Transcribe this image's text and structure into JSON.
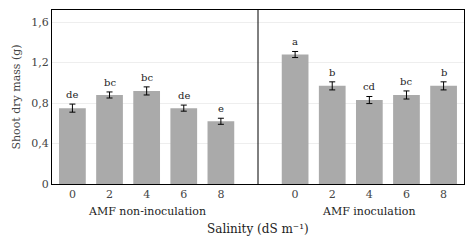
{
  "chart_data": {
    "type": "bar",
    "ylabel": "Shoot dry mass (g)",
    "xlabel": "Salinity (dS m⁻¹)",
    "color": "#aaaaaa",
    "ylim": [
      0,
      1.72
    ],
    "yticks": [
      0,
      {
        "value": 0.4,
        "label": "0,4"
      },
      {
        "value": 0.8,
        "label": "0,8"
      },
      {
        "value": 1.2,
        "label": "1,2"
      },
      {
        "value": 1.6,
        "label": "1,6"
      }
    ],
    "grid": true,
    "groups": [
      {
        "label": "AMF non-inoculation",
        "categories": [
          "0",
          "2",
          "4",
          "6",
          "8"
        ],
        "values": [
          0.75,
          0.88,
          0.92,
          0.75,
          0.62
        ],
        "errors": [
          0.04,
          0.03,
          0.04,
          0.03,
          0.03
        ],
        "letters": [
          "de",
          "bc",
          "bc",
          "de",
          "e"
        ]
      },
      {
        "label": "AMF inoculation",
        "categories": [
          "0",
          "2",
          "4",
          "6",
          "8"
        ],
        "values": [
          1.28,
          0.97,
          0.83,
          0.88,
          0.97
        ],
        "errors": [
          0.03,
          0.04,
          0.035,
          0.04,
          0.04
        ],
        "letters": [
          "a",
          "b",
          "cd",
          "bc",
          "b"
        ]
      }
    ]
  }
}
